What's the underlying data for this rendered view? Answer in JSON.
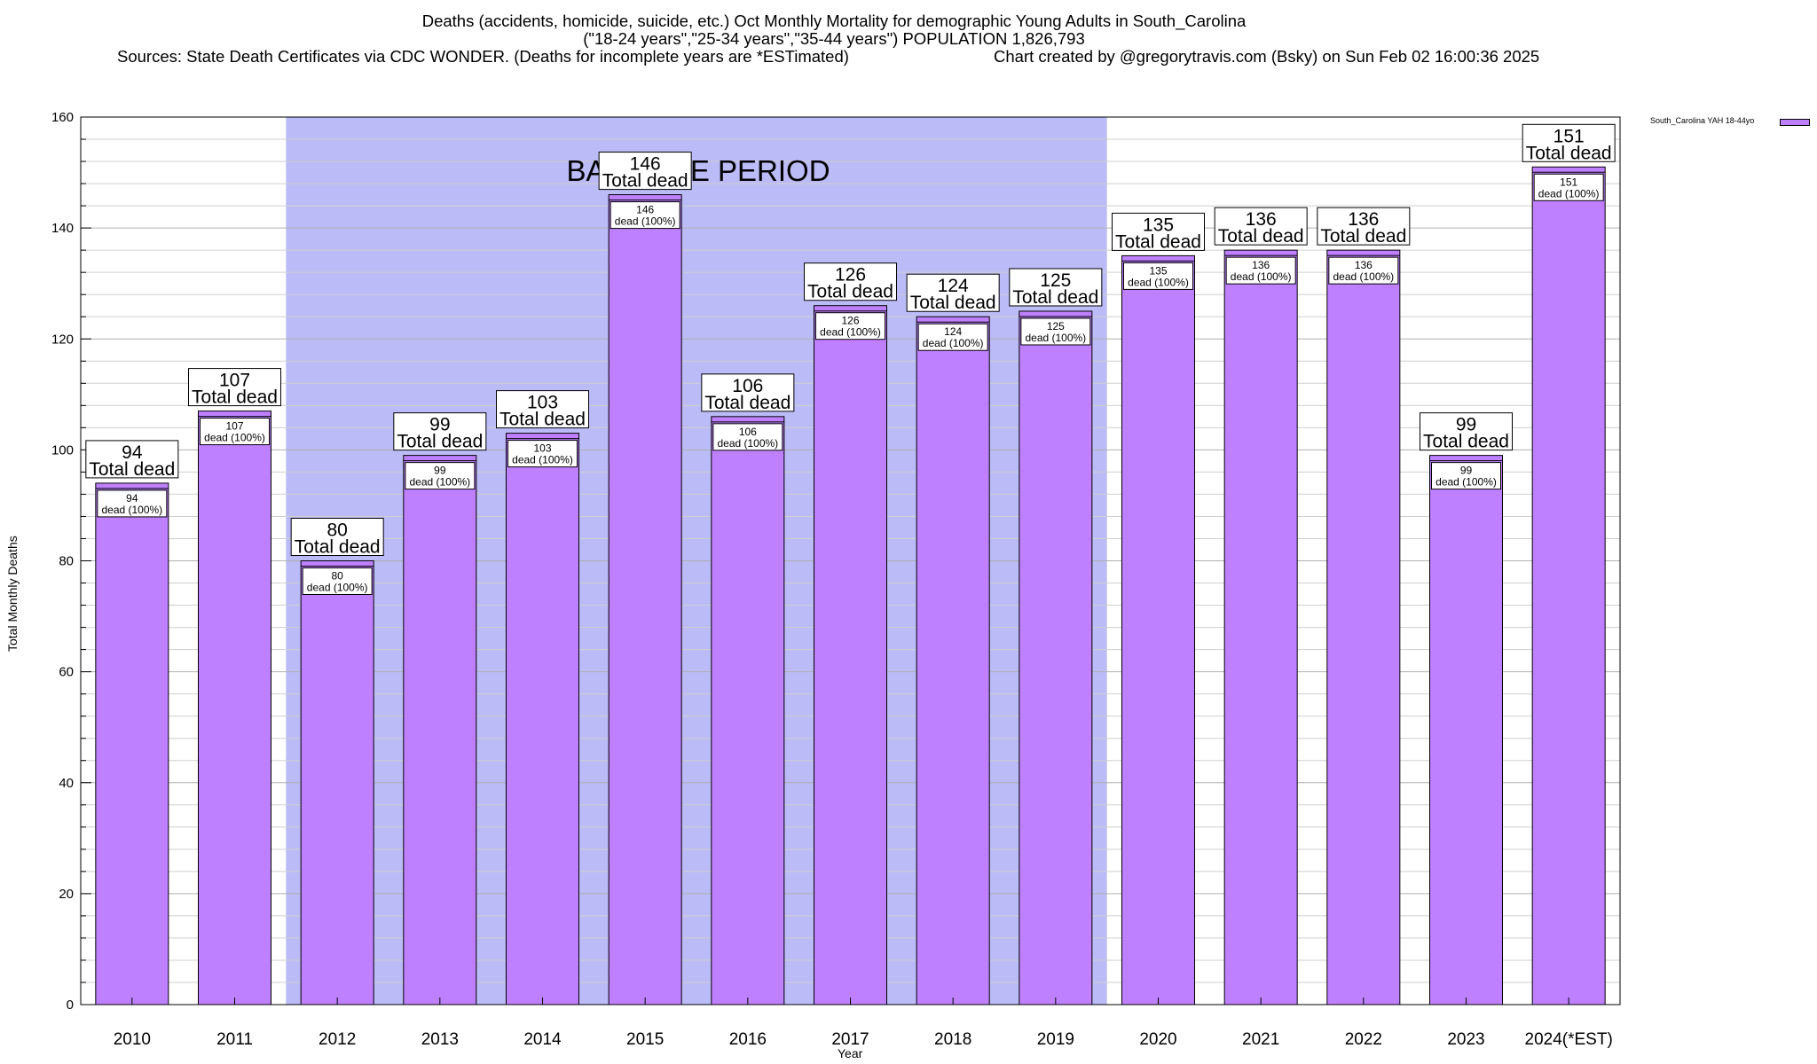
{
  "header": {
    "line1": "Deaths (accidents, homicide, suicide, etc.) Oct Monthly Mortality for demographic Young Adults in South_Carolina",
    "line2": "(\"18-24 years\",\"25-34 years\",\"35-44 years\") POPULATION 1,826,793",
    "line3_left": "Sources: State Death Certificates via CDC WONDER. (Deaths for incomplete years are *ESTimated)",
    "line3_right": "Chart created by @gregorytravis.com (Bsky) on Sun Feb 02 16:00:36 2025"
  },
  "chart_data": {
    "type": "bar",
    "title": "Deaths (accidents, homicide, suicide, etc.) Oct Monthly Mortality for demographic Young Adults in South_Carolina",
    "xlabel": "Year",
    "ylabel": "Total Monthly Deaths",
    "ylim": [
      0,
      160
    ],
    "yticks": [
      0,
      20,
      40,
      60,
      80,
      100,
      120,
      140,
      160
    ],
    "grid": true,
    "legend_position": "top-right",
    "categories": [
      "2010",
      "2011",
      "2012",
      "2013",
      "2014",
      "2015",
      "2016",
      "2017",
      "2018",
      "2019",
      "2020",
      "2021",
      "2022",
      "2023",
      "2024(*EST)"
    ],
    "series": [
      {
        "name": "South_Carolina YAH 18-44yo",
        "color": "#bf80ff",
        "values": [
          94,
          107,
          80,
          99,
          103,
          146,
          106,
          126,
          124,
          125,
          135,
          136,
          136,
          99,
          151
        ]
      }
    ],
    "top_label_suffix": "Total dead",
    "inner_label_suffix": "dead (100%)",
    "baseline_period": {
      "label": "BASELINE PERIOD",
      "start": "2012",
      "end": "2019",
      "color": "#bbbbf7"
    }
  }
}
